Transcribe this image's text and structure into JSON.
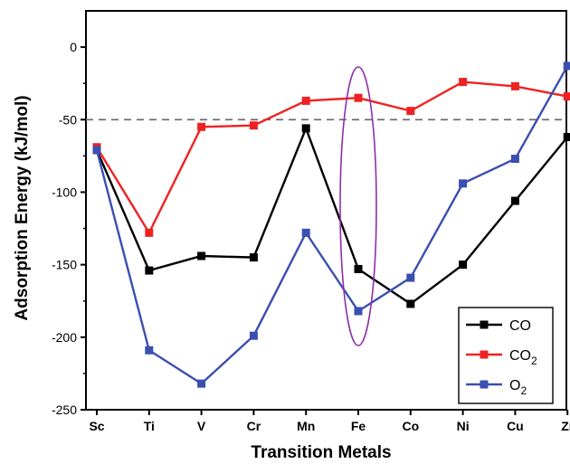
{
  "chart_data": {
    "type": "line",
    "xlabel": "Transition Metals",
    "ylabel": "Adsorption Energy (kJ/mol)",
    "categories": [
      "Sc",
      "Ti",
      "V",
      "Cr",
      "Mn",
      "Fe",
      "Co",
      "Ni",
      "Cu",
      "Zr"
    ],
    "ylim": [
      -250,
      25
    ],
    "yticks": [
      0,
      -50,
      -100,
      -150,
      -200,
      -250
    ],
    "series": [
      {
        "name": "CO",
        "legend_label": "CO",
        "legend_sub": "",
        "color": "#000000",
        "values": [
          -71,
          -154,
          -144,
          -145,
          -56,
          -153,
          -177,
          -150,
          -106,
          -62
        ]
      },
      {
        "name": "CO2",
        "legend_label": "CO",
        "legend_sub": "2",
        "color": "#ee2222",
        "values": [
          -69,
          -128,
          -55,
          -54,
          -37,
          -35,
          -44,
          -24,
          -27,
          -34
        ]
      },
      {
        "name": "O2",
        "legend_label": "O",
        "legend_sub": "2",
        "color": "#3a4fb0",
        "values": [
          -71,
          -209,
          -232,
          -199,
          -128,
          -182,
          -159,
          -94,
          -77,
          -13
        ]
      }
    ],
    "reference_line": {
      "value": -50,
      "style": "dashed",
      "color": "#666666"
    },
    "highlight": {
      "category": "Fe",
      "shape": "ellipse",
      "color": "#8e2fa8"
    },
    "legend_position": "bottom-right",
    "grid": false
  }
}
